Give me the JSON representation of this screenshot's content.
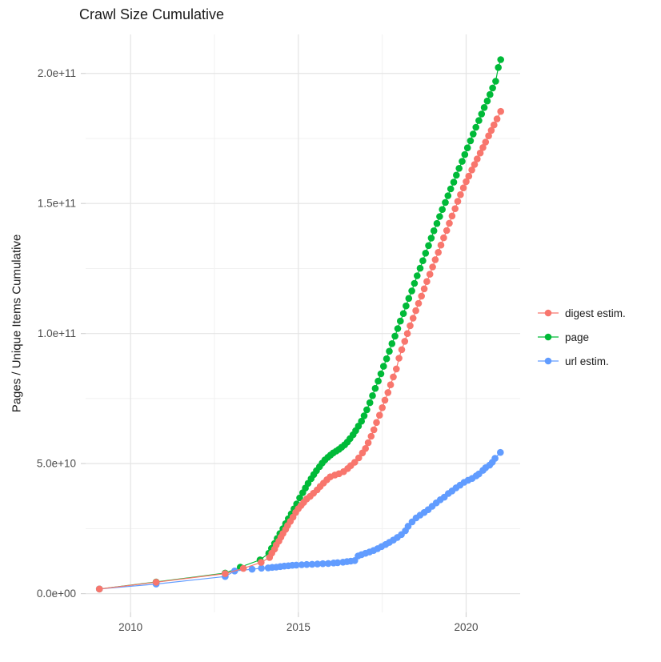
{
  "title": "Crawl Size Cumulative",
  "y_axis": {
    "label": "Pages / Unique Items Cumulative",
    "tick_labels": [
      "0.0e+00",
      "5.0e+10",
      "1.0e+11",
      "1.5e+11",
      "2.0e+11"
    ],
    "tick_values_e9": [
      0,
      50,
      100,
      150,
      200
    ],
    "minor_values_e9": [
      25,
      75,
      125,
      175
    ]
  },
  "x_axis": {
    "tick_labels": [
      "2010",
      "2015",
      "2020"
    ],
    "tick_values": [
      2010,
      2015,
      2020
    ],
    "minor_values": [
      2012.5,
      2017.5
    ]
  },
  "legend": {
    "position": "right",
    "items": [
      {
        "label": "digest estim.",
        "color": "#F8766D"
      },
      {
        "label": "page",
        "color": "#00BA38"
      },
      {
        "label": "url estim.",
        "color": "#619CFF"
      }
    ]
  },
  "colors": {
    "digest_estim": "#F8766D",
    "page": "#00BA38",
    "url_estim": "#619CFF",
    "grid_major": "#E4E4E4",
    "grid_minor": "#F1F1F1",
    "axis_tick": "#D4D4D4",
    "tick_text": "#4D4D4D",
    "text": "#1A1A1A",
    "background": "#FFFFFF"
  },
  "chart_data": {
    "type": "scatter",
    "title": "Crawl Size Cumulative",
    "xlabel": "",
    "ylabel": "Pages / Unique Items Cumulative",
    "x_unit": "year (decimal)",
    "value_unit": "cumulative count in billions (1e9)",
    "xlim": [
      2008.66,
      2021.61
    ],
    "ylim_e9": [
      -7.2,
      215
    ],
    "grid": true,
    "legend_position": "right",
    "x_ticks": [
      2010,
      2015,
      2020
    ],
    "y_ticks_e9": [
      0,
      50,
      100,
      150,
      200
    ],
    "series": [
      {
        "name": "page",
        "color": "#00BA38",
        "points": [
          [
            2009.07,
            1.8
          ],
          [
            2010.76,
            4.5
          ],
          [
            2012.82,
            7.9
          ],
          [
            2013.27,
            10.2
          ],
          [
            2013.86,
            13.0
          ],
          [
            2014.12,
            15.5
          ],
          [
            2014.2,
            17.4
          ],
          [
            2014.29,
            19.3
          ],
          [
            2014.37,
            21.2
          ],
          [
            2014.45,
            23.1
          ],
          [
            2014.54,
            25.0
          ],
          [
            2014.62,
            26.9
          ],
          [
            2014.7,
            28.8
          ],
          [
            2014.79,
            30.7
          ],
          [
            2014.87,
            32.6
          ],
          [
            2014.95,
            34.5
          ],
          [
            2015.04,
            36.8
          ],
          [
            2015.13,
            38.8
          ],
          [
            2015.21,
            40.6
          ],
          [
            2015.29,
            42.4
          ],
          [
            2015.38,
            44.2
          ],
          [
            2015.46,
            45.8
          ],
          [
            2015.54,
            47.3
          ],
          [
            2015.63,
            48.8
          ],
          [
            2015.71,
            50.2
          ],
          [
            2015.79,
            51.4
          ],
          [
            2015.88,
            52.4
          ],
          [
            2015.96,
            53.3
          ],
          [
            2016.04,
            54.1
          ],
          [
            2016.13,
            54.8
          ],
          [
            2016.21,
            55.5
          ],
          [
            2016.29,
            56.3
          ],
          [
            2016.38,
            57.2
          ],
          [
            2016.46,
            58.3
          ],
          [
            2016.54,
            59.6
          ],
          [
            2016.63,
            61.1
          ],
          [
            2016.71,
            62.7
          ],
          [
            2016.79,
            64.4
          ],
          [
            2016.88,
            66.3
          ],
          [
            2016.96,
            68.4
          ],
          [
            2017.04,
            70.7
          ],
          [
            2017.13,
            73.4
          ],
          [
            2017.21,
            76.1
          ],
          [
            2017.29,
            78.9
          ],
          [
            2017.38,
            81.7
          ],
          [
            2017.46,
            84.5
          ],
          [
            2017.54,
            87.4
          ],
          [
            2017.63,
            90.3
          ],
          [
            2017.71,
            93.2
          ],
          [
            2017.79,
            96.1
          ],
          [
            2017.88,
            99.0
          ],
          [
            2017.96,
            101.9
          ],
          [
            2018.04,
            104.8
          ],
          [
            2018.13,
            107.7
          ],
          [
            2018.21,
            110.6
          ],
          [
            2018.29,
            113.5
          ],
          [
            2018.38,
            116.4
          ],
          [
            2018.46,
            119.3
          ],
          [
            2018.54,
            122.2
          ],
          [
            2018.63,
            125.1
          ],
          [
            2018.71,
            128.0
          ],
          [
            2018.79,
            130.9
          ],
          [
            2018.88,
            133.8
          ],
          [
            2018.96,
            136.7
          ],
          [
            2019.04,
            139.5
          ],
          [
            2019.13,
            142.3
          ],
          [
            2019.21,
            145.0
          ],
          [
            2019.29,
            147.7
          ],
          [
            2019.38,
            150.4
          ],
          [
            2019.46,
            153.0
          ],
          [
            2019.54,
            155.6
          ],
          [
            2019.63,
            158.2
          ],
          [
            2019.71,
            160.9
          ],
          [
            2019.79,
            163.5
          ],
          [
            2019.88,
            166.2
          ],
          [
            2019.96,
            168.8
          ],
          [
            2020.04,
            171.4
          ],
          [
            2020.13,
            174.1
          ],
          [
            2020.21,
            176.7
          ],
          [
            2020.29,
            179.3
          ],
          [
            2020.38,
            181.9
          ],
          [
            2020.46,
            184.4
          ],
          [
            2020.54,
            186.9
          ],
          [
            2020.63,
            189.4
          ],
          [
            2020.71,
            191.9
          ],
          [
            2020.79,
            194.4
          ],
          [
            2020.88,
            197.0
          ],
          [
            2020.96,
            202.3
          ],
          [
            2021.03,
            205.3
          ]
        ]
      },
      {
        "name": "url estim.",
        "color": "#619CFF",
        "points": [
          [
            2009.07,
            1.8
          ],
          [
            2010.76,
            3.7
          ],
          [
            2012.82,
            6.6
          ],
          [
            2013.1,
            8.7
          ],
          [
            2013.62,
            9.4
          ],
          [
            2013.9,
            9.8
          ],
          [
            2014.1,
            9.9
          ],
          [
            2014.22,
            10.1
          ],
          [
            2014.34,
            10.2
          ],
          [
            2014.46,
            10.4
          ],
          [
            2014.58,
            10.6
          ],
          [
            2014.7,
            10.7
          ],
          [
            2014.82,
            10.9
          ],
          [
            2014.94,
            11.0
          ],
          [
            2015.1,
            11.1
          ],
          [
            2015.25,
            11.2
          ],
          [
            2015.41,
            11.3
          ],
          [
            2015.57,
            11.4
          ],
          [
            2015.73,
            11.5
          ],
          [
            2015.89,
            11.6
          ],
          [
            2016.05,
            11.8
          ],
          [
            2016.17,
            11.9
          ],
          [
            2016.33,
            12.1
          ],
          [
            2016.45,
            12.3
          ],
          [
            2016.56,
            12.5
          ],
          [
            2016.68,
            12.7
          ],
          [
            2016.78,
            14.5
          ],
          [
            2016.88,
            15.0
          ],
          [
            2017.0,
            15.5
          ],
          [
            2017.12,
            16.0
          ],
          [
            2017.24,
            16.6
          ],
          [
            2017.36,
            17.3
          ],
          [
            2017.48,
            18.1
          ],
          [
            2017.6,
            18.9
          ],
          [
            2017.71,
            19.7
          ],
          [
            2017.83,
            20.6
          ],
          [
            2017.95,
            21.6
          ],
          [
            2018.07,
            22.7
          ],
          [
            2018.19,
            24.2
          ],
          [
            2018.27,
            25.9
          ],
          [
            2018.39,
            27.6
          ],
          [
            2018.51,
            29.1
          ],
          [
            2018.63,
            30.2
          ],
          [
            2018.75,
            31.2
          ],
          [
            2018.87,
            32.3
          ],
          [
            2018.99,
            33.6
          ],
          [
            2019.11,
            34.9
          ],
          [
            2019.23,
            36.1
          ],
          [
            2019.35,
            37.1
          ],
          [
            2019.47,
            38.5
          ],
          [
            2019.58,
            39.5
          ],
          [
            2019.7,
            40.7
          ],
          [
            2019.82,
            41.7
          ],
          [
            2019.94,
            42.8
          ],
          [
            2020.06,
            43.6
          ],
          [
            2020.18,
            44.3
          ],
          [
            2020.3,
            45.3
          ],
          [
            2020.38,
            46.0
          ],
          [
            2020.5,
            47.4
          ],
          [
            2020.58,
            48.4
          ],
          [
            2020.7,
            49.4
          ],
          [
            2020.78,
            50.5
          ],
          [
            2020.86,
            52.0
          ],
          [
            2021.02,
            54.3
          ]
        ]
      },
      {
        "name": "digest estim.",
        "color": "#F8766D",
        "points": [
          [
            2009.07,
            1.8
          ],
          [
            2010.76,
            4.4
          ],
          [
            2012.82,
            7.7
          ],
          [
            2013.36,
            9.7
          ],
          [
            2013.89,
            12.0
          ],
          [
            2014.14,
            13.9
          ],
          [
            2014.21,
            15.6
          ],
          [
            2014.29,
            17.1
          ],
          [
            2014.34,
            18.7
          ],
          [
            2014.42,
            20.2
          ],
          [
            2014.48,
            21.7
          ],
          [
            2014.54,
            23.1
          ],
          [
            2014.62,
            24.7
          ],
          [
            2014.68,
            26.2
          ],
          [
            2014.76,
            27.8
          ],
          [
            2014.84,
            29.4
          ],
          [
            2014.92,
            31.2
          ],
          [
            2015.0,
            32.7
          ],
          [
            2015.08,
            33.9
          ],
          [
            2015.16,
            35.1
          ],
          [
            2015.25,
            36.4
          ],
          [
            2015.35,
            37.4
          ],
          [
            2015.45,
            38.6
          ],
          [
            2015.56,
            39.9
          ],
          [
            2015.65,
            41.2
          ],
          [
            2015.75,
            42.5
          ],
          [
            2015.85,
            43.8
          ],
          [
            2015.95,
            44.9
          ],
          [
            2016.09,
            45.6
          ],
          [
            2016.21,
            46.1
          ],
          [
            2016.35,
            46.9
          ],
          [
            2016.47,
            48.1
          ],
          [
            2016.56,
            49.2
          ],
          [
            2016.68,
            50.5
          ],
          [
            2016.8,
            52.2
          ],
          [
            2016.91,
            54.1
          ],
          [
            2017.0,
            55.8
          ],
          [
            2017.08,
            58.0
          ],
          [
            2017.17,
            60.5
          ],
          [
            2017.25,
            63.0
          ],
          [
            2017.33,
            65.8
          ],
          [
            2017.42,
            68.6
          ],
          [
            2017.5,
            71.5
          ],
          [
            2017.58,
            74.4
          ],
          [
            2017.67,
            77.3
          ],
          [
            2017.75,
            80.3
          ],
          [
            2017.83,
            83.3
          ],
          [
            2017.92,
            86.4
          ],
          [
            2018.0,
            90.5
          ],
          [
            2018.08,
            93.8
          ],
          [
            2018.17,
            97.0
          ],
          [
            2018.25,
            100.0
          ],
          [
            2018.33,
            103.0
          ],
          [
            2018.42,
            105.9
          ],
          [
            2018.5,
            108.8
          ],
          [
            2018.58,
            111.6
          ],
          [
            2018.67,
            114.4
          ],
          [
            2018.75,
            117.2
          ],
          [
            2018.83,
            120.0
          ],
          [
            2018.92,
            122.8
          ],
          [
            2019.0,
            125.6
          ],
          [
            2019.08,
            128.4
          ],
          [
            2019.17,
            131.2
          ],
          [
            2019.25,
            134.0
          ],
          [
            2019.33,
            136.8
          ],
          [
            2019.42,
            139.6
          ],
          [
            2019.5,
            142.4
          ],
          [
            2019.58,
            145.2
          ],
          [
            2019.67,
            148.0
          ],
          [
            2019.75,
            150.8
          ],
          [
            2019.83,
            153.4
          ],
          [
            2019.92,
            156.0
          ],
          [
            2020.0,
            158.4
          ],
          [
            2020.08,
            160.5
          ],
          [
            2020.17,
            162.9
          ],
          [
            2020.25,
            165.0
          ],
          [
            2020.33,
            167.1
          ],
          [
            2020.42,
            169.4
          ],
          [
            2020.5,
            171.5
          ],
          [
            2020.58,
            173.6
          ],
          [
            2020.67,
            176.0
          ],
          [
            2020.75,
            178.1
          ],
          [
            2020.83,
            180.2
          ],
          [
            2020.92,
            182.5
          ],
          [
            2021.03,
            185.4
          ]
        ]
      }
    ]
  }
}
